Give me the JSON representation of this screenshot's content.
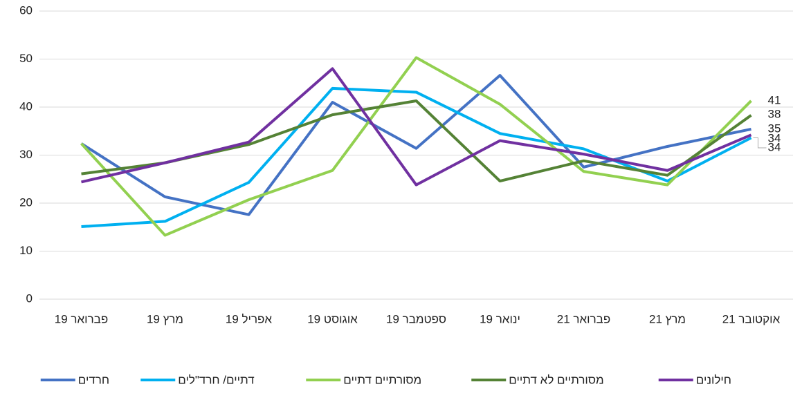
{
  "chart_data": {
    "type": "line",
    "categories": [
      "פברואר 19",
      "מרץ 19",
      "אפריל 19",
      "אוגוסט 19",
      "ספטמבר 19",
      "ינואר 19",
      "פברואר 21",
      "מרץ 21",
      "אוקטובר 21"
    ],
    "series": [
      {
        "name": "חרדים",
        "color": "#4472c4",
        "values": [
          32.4,
          21.3,
          17.6,
          41.0,
          31.4,
          46.6,
          27.5,
          31.8,
          35.4
        ],
        "value_labels": [
          null,
          null,
          null,
          null,
          null,
          null,
          null,
          null,
          "35"
        ]
      },
      {
        "name": "דתיים/ חרד\"לים",
        "color": "#00b0f0",
        "values": [
          15.1,
          16.2,
          24.3,
          43.9,
          43.1,
          34.5,
          31.3,
          24.6,
          33.6
        ],
        "value_labels": [
          null,
          null,
          null,
          null,
          null,
          null,
          null,
          null,
          "34"
        ]
      },
      {
        "name": "מסורתיים דתיים",
        "color": "#92d050",
        "values": [
          32.4,
          13.3,
          20.7,
          26.8,
          50.3,
          40.6,
          26.6,
          23.8,
          41.3
        ],
        "value_labels": [
          null,
          null,
          null,
          null,
          null,
          null,
          null,
          null,
          "41"
        ]
      },
      {
        "name": "מסורתיים לא דתיים",
        "color": "#548235",
        "values": [
          26.1,
          28.4,
          32.2,
          38.4,
          41.3,
          24.6,
          28.8,
          25.8,
          38.3
        ],
        "value_labels": [
          null,
          null,
          null,
          null,
          null,
          null,
          null,
          null,
          "38"
        ]
      },
      {
        "name": "חילונים",
        "color": "#7030a0",
        "values": [
          24.4,
          28.4,
          32.7,
          48.0,
          23.8,
          33.0,
          30.2,
          26.8,
          34.2
        ],
        "value_labels": [
          null,
          null,
          null,
          null,
          null,
          null,
          null,
          null,
          "34"
        ]
      }
    ],
    "ylim": [
      0,
      60
    ],
    "yticks": [
      0,
      10,
      20,
      30,
      40,
      50,
      60
    ],
    "grid": true,
    "legend": "bottom"
  }
}
